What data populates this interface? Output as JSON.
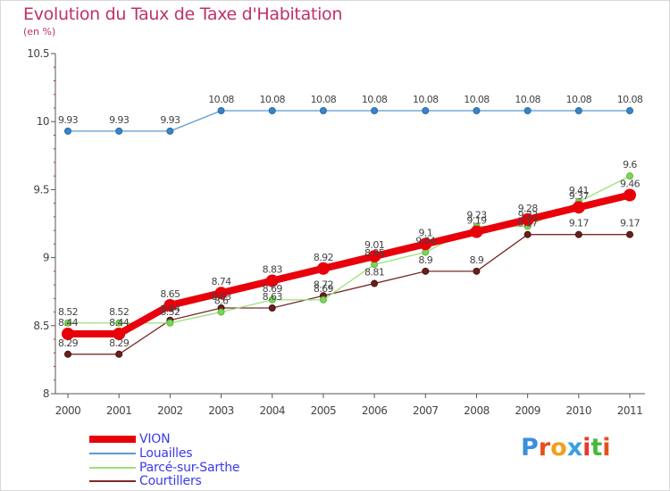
{
  "title": "Evolution du Taux de Taxe d'Habitation",
  "subtitle": "(en %)",
  "brand": {
    "text": "Proxiti",
    "letter_colors": [
      "#3a8fd9",
      "#e6501e",
      "#f0a020",
      "#3aa0e0",
      "#e63a2a",
      "#4ab83a",
      "#e6501e"
    ]
  },
  "chart_data": {
    "type": "line",
    "x": [
      "2000",
      "2001",
      "2002",
      "2003",
      "2004",
      "2005",
      "2006",
      "2007",
      "2008",
      "2009",
      "2010",
      "2011"
    ],
    "ylim": [
      8,
      10.5
    ],
    "yticks": [
      "8",
      "8.5",
      "9",
      "9.5",
      "10",
      "10.5"
    ],
    "grid": false,
    "legend_position": "bottom-left",
    "series": [
      {
        "name": "VION",
        "color": "#e8000b",
        "values": [
          8.44,
          8.44,
          8.65,
          8.74,
          8.83,
          8.92,
          9.01,
          9.1,
          9.19,
          9.28,
          9.37,
          9.46
        ],
        "labels": [
          "8.44",
          "8.44",
          "8.65",
          "8.74",
          "8.83",
          "8.92",
          "9.01",
          "9.1",
          "9.19",
          "9.28",
          "9.37",
          "9.46"
        ]
      },
      {
        "name": "Louailles",
        "color": "#5b9bd0",
        "values": [
          9.93,
          9.93,
          9.93,
          10.08,
          10.08,
          10.08,
          10.08,
          10.08,
          10.08,
          10.08,
          10.08,
          10.08
        ],
        "labels": [
          "9.93",
          "9.93",
          "9.93",
          "10.08",
          "10.08",
          "10.08",
          "10.08",
          "10.08",
          "10.08",
          "10.08",
          "10.08",
          "10.08"
        ]
      },
      {
        "name": "Parcé-sur-Sarthe",
        "color": "#9ae07a",
        "values": [
          8.52,
          8.52,
          8.52,
          8.6,
          8.69,
          8.69,
          8.95,
          9.04,
          9.23,
          9.23,
          9.41,
          9.6
        ],
        "labels": [
          "8.52",
          "8.52",
          "8.52",
          "8.6",
          "8.69",
          "8.69",
          "8.95",
          "9.04",
          "9.23",
          "9.23",
          "9.41",
          "9.6"
        ]
      },
      {
        "name": "Courtillers",
        "color": "#7a2a2a",
        "values": [
          8.29,
          8.29,
          8.54,
          8.63,
          8.63,
          8.72,
          8.81,
          8.9,
          8.9,
          9.17,
          9.17,
          9.17
        ],
        "labels": [
          "8.29",
          "8.29",
          "8.54",
          "8.63",
          "8.63",
          "8.72",
          "8.81",
          "8.9",
          "8.9",
          "9.17",
          "9.17",
          "9.17"
        ]
      }
    ]
  }
}
